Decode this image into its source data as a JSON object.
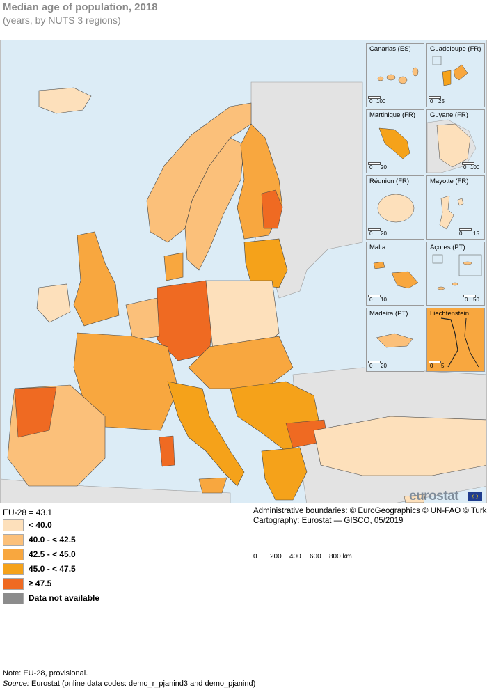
{
  "title": "Median age of population, 2018",
  "subtitle": "(years, by NUTS 3 regions)",
  "eu_average": "EU-28 = 43.1",
  "legend": [
    {
      "label": "< 40.0",
      "color": "#fde0bb"
    },
    {
      "label": "40.0 - < 42.5",
      "color": "#fbc07a"
    },
    {
      "label": "42.5 - < 45.0",
      "color": "#f8a73f"
    },
    {
      "label": "45.0 - < 47.5",
      "color": "#f5a21a"
    },
    {
      "label": "≥ 47.5",
      "color": "#ef6a22"
    },
    {
      "label": "Data not available",
      "color": "#8c8c8c"
    }
  ],
  "insets": [
    {
      "name": "Canarias (ES)",
      "scale_start": "0",
      "scale_end": "100"
    },
    {
      "name": "Guadeloupe (FR)",
      "scale_start": "0",
      "scale_end": "25"
    },
    {
      "name": "Martinique (FR)",
      "scale_start": "0",
      "scale_end": "20"
    },
    {
      "name": "Guyane (FR)",
      "scale_start": "0",
      "scale_end": "100"
    },
    {
      "name": "Réunion (FR)",
      "scale_start": "0",
      "scale_end": "20"
    },
    {
      "name": "Mayotte (FR)",
      "scale_start": "0",
      "scale_end": "15"
    },
    {
      "name": "Malta",
      "scale_start": "0",
      "scale_end": "10"
    },
    {
      "name": "Açores (PT)",
      "scale_start": "0",
      "scale_end": "50"
    },
    {
      "name": "Madeira (PT)",
      "scale_start": "0",
      "scale_end": "20"
    },
    {
      "name": "Liechtenstein",
      "scale_start": "0",
      "scale_end": "5"
    }
  ],
  "logo": "eurostat",
  "attribution": "Administrative boundaries: © EuroGeographics © UN-FAO © Turkstat",
  "cartography": "Cartography: Eurostat — GISCO, 05/2019",
  "scale": {
    "labels": [
      "0",
      "200",
      "400",
      "600",
      "800 km"
    ]
  },
  "note": "Note: EU-28, provisional.",
  "source_label": "Source:",
  "source_text": " Eurostat (online data codes: demo_r_pjanind3 and demo_pjanind)",
  "colors": {
    "sea": "#dcecf6",
    "non_eu_land": "#e3e3e3",
    "border": "#222222"
  }
}
